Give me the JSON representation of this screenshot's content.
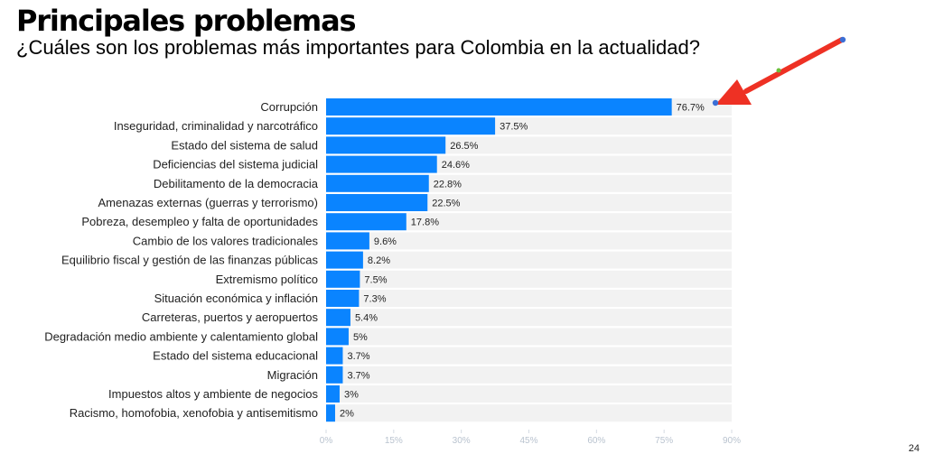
{
  "header": {
    "title": "Principales problemas",
    "subtitle": "¿Cuáles son los problemas más importantes para Colombia en la actualidad?"
  },
  "page_number": "24",
  "colors": {
    "bar": "#0a84ff",
    "track": "#f2f2f2",
    "arrow": "#ee3124",
    "tick_text": "#b9c3cf"
  },
  "chart_data": {
    "type": "bar",
    "orientation": "horizontal",
    "title": "",
    "xlabel": "",
    "ylabel": "",
    "xlim": [
      0,
      90
    ],
    "x_ticks": [
      "0%",
      "15%",
      "30%",
      "45%",
      "60%",
      "75%",
      "90%"
    ],
    "grid": false,
    "categories": [
      "Corrupción",
      "Inseguridad, criminalidad y narcotráfico",
      "Estado del sistema de salud",
      "Deficiencias del sistema judicial",
      "Debilitamento de la democracia",
      "Amenazas externas (guerras y terrorismo)",
      "Pobreza, desempleo y falta de oportunidades",
      "Cambio de los valores tradicionales",
      "Equilibrio fiscal y gestión de las finanzas públicas",
      "Extremismo político",
      "Situación económica y inflación",
      "Carreteras, puertos y aeropuertos",
      "Degradación medio ambiente y calentamiento global",
      "Estado del sistema educacional",
      "Migración",
      "Impuestos altos y ambiente de negocios",
      "Racismo, homofobia, xenofobia y antisemitismo"
    ],
    "values": [
      76.7,
      37.5,
      26.5,
      24.6,
      22.8,
      22.5,
      17.8,
      9.6,
      8.2,
      7.5,
      7.3,
      5.4,
      5,
      3.7,
      3.7,
      3,
      2
    ],
    "value_labels": [
      "76.7%",
      "37.5%",
      "26.5%",
      "24.6%",
      "22.8%",
      "22.5%",
      "17.8%",
      "9.6%",
      "8.2%",
      "7.5%",
      "7.3%",
      "5.4%",
      "5%",
      "3.7%",
      "3.7%",
      "3%",
      "2%"
    ],
    "annotation": "red arrow pointing to the Corrupción bar"
  }
}
